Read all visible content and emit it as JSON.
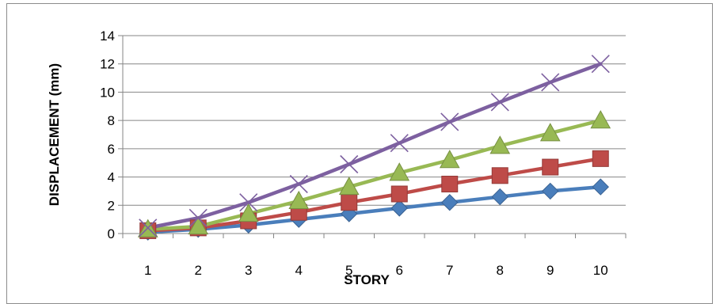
{
  "chart_data": {
    "type": "line",
    "title": "",
    "xlabel": "STORY",
    "ylabel": "DISPLACEMENT (mm)",
    "categories": [
      "1",
      "2",
      "3",
      "4",
      "5",
      "6",
      "7",
      "8",
      "9",
      "10"
    ],
    "ylim": [
      0,
      14
    ],
    "yticks": [
      0,
      2,
      4,
      6,
      8,
      10,
      12,
      14
    ],
    "grid": true,
    "legend": "none",
    "series": [
      {
        "values": [
          0.1,
          0.3,
          0.6,
          1.0,
          1.4,
          1.8,
          2.2,
          2.6,
          3.0,
          3.3
        ],
        "color": "#4a7ebb",
        "marker": "diamond"
      },
      {
        "values": [
          0.2,
          0.4,
          0.9,
          1.5,
          2.2,
          2.8,
          3.5,
          4.1,
          4.7,
          5.3
        ],
        "color": "#be4b48",
        "marker": "square"
      },
      {
        "values": [
          0.3,
          0.5,
          1.4,
          2.3,
          3.3,
          4.3,
          5.2,
          6.2,
          7.1,
          8.0
        ],
        "color": "#98b954",
        "marker": "triangle"
      },
      {
        "values": [
          0.4,
          1.1,
          2.2,
          3.5,
          4.9,
          6.4,
          7.9,
          9.3,
          10.7,
          12.0
        ],
        "color": "#7d60a0",
        "marker": "x"
      }
    ]
  }
}
